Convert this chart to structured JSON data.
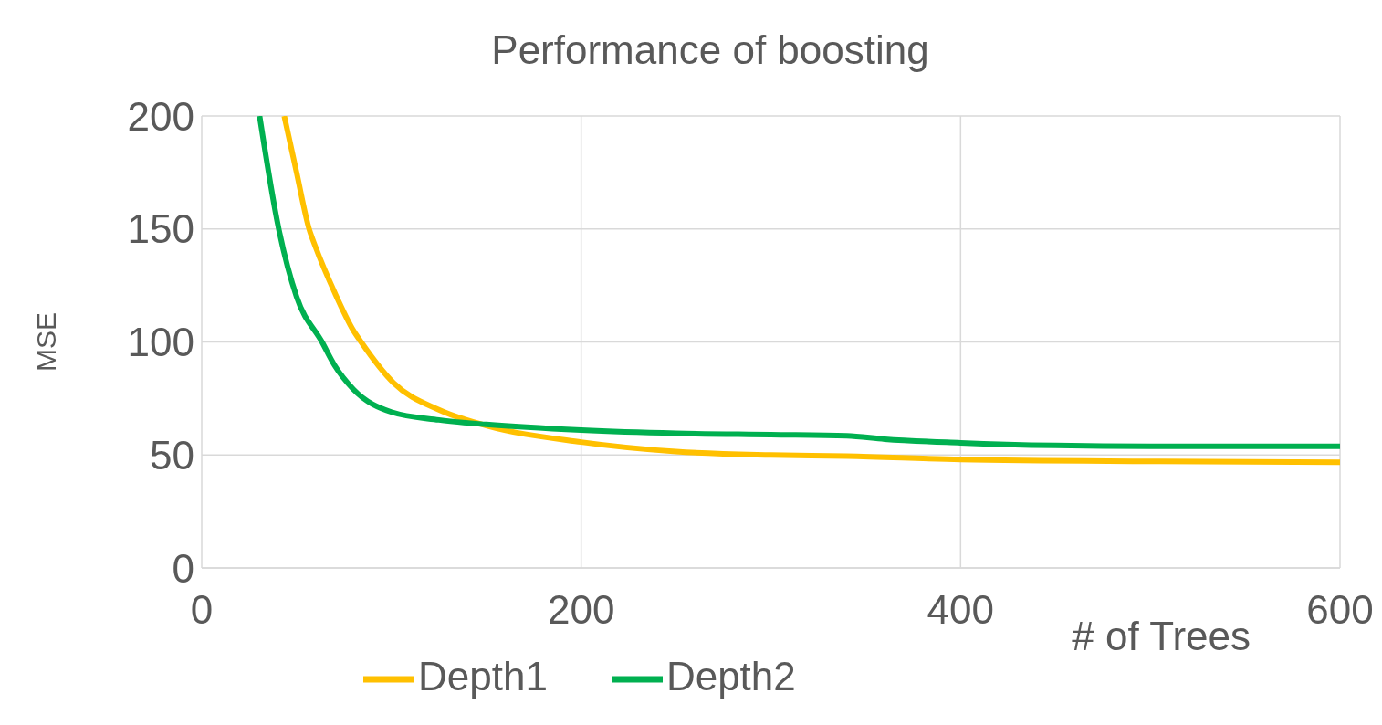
{
  "chart_data": {
    "type": "line",
    "title": "Performance of boosting",
    "xlabel": "# of Trees",
    "ylabel": "MSE",
    "xlim": [
      0,
      600
    ],
    "xticks": [
      0,
      200,
      400,
      600
    ],
    "ylim": [
      0,
      200
    ],
    "yticks": [
      0,
      50,
      100,
      150,
      200
    ],
    "grid": true,
    "legend": "bottom left",
    "marker": "none",
    "line_style": "solid",
    "series": [
      {
        "name": "Depth1",
        "color": "#ffc000",
        "x": [
          43.5,
          50,
          56.6,
          60,
          70,
          80,
          84,
          101,
          125,
          150,
          200,
          250,
          300,
          340,
          400,
          500,
          600
        ],
        "values": [
          200,
          175,
          150,
          142,
          122,
          105,
          100,
          82,
          70,
          63,
          55.7,
          51.5,
          50,
          49.5,
          48,
          47.2,
          46.8
        ]
      },
      {
        "name": "Depth2",
        "color": "#00b050",
        "x": [
          30.5,
          40.6,
          50,
          63.4,
          70,
          80,
          100,
          125,
          150,
          200,
          250,
          300,
          340,
          360,
          400,
          450,
          500,
          600
        ],
        "values": [
          200,
          150,
          120,
          100,
          89.7,
          79,
          69,
          65.5,
          63.5,
          61,
          59.6,
          59,
          58.5,
          57,
          55.4,
          54.2,
          53.8,
          53.8
        ]
      }
    ]
  }
}
